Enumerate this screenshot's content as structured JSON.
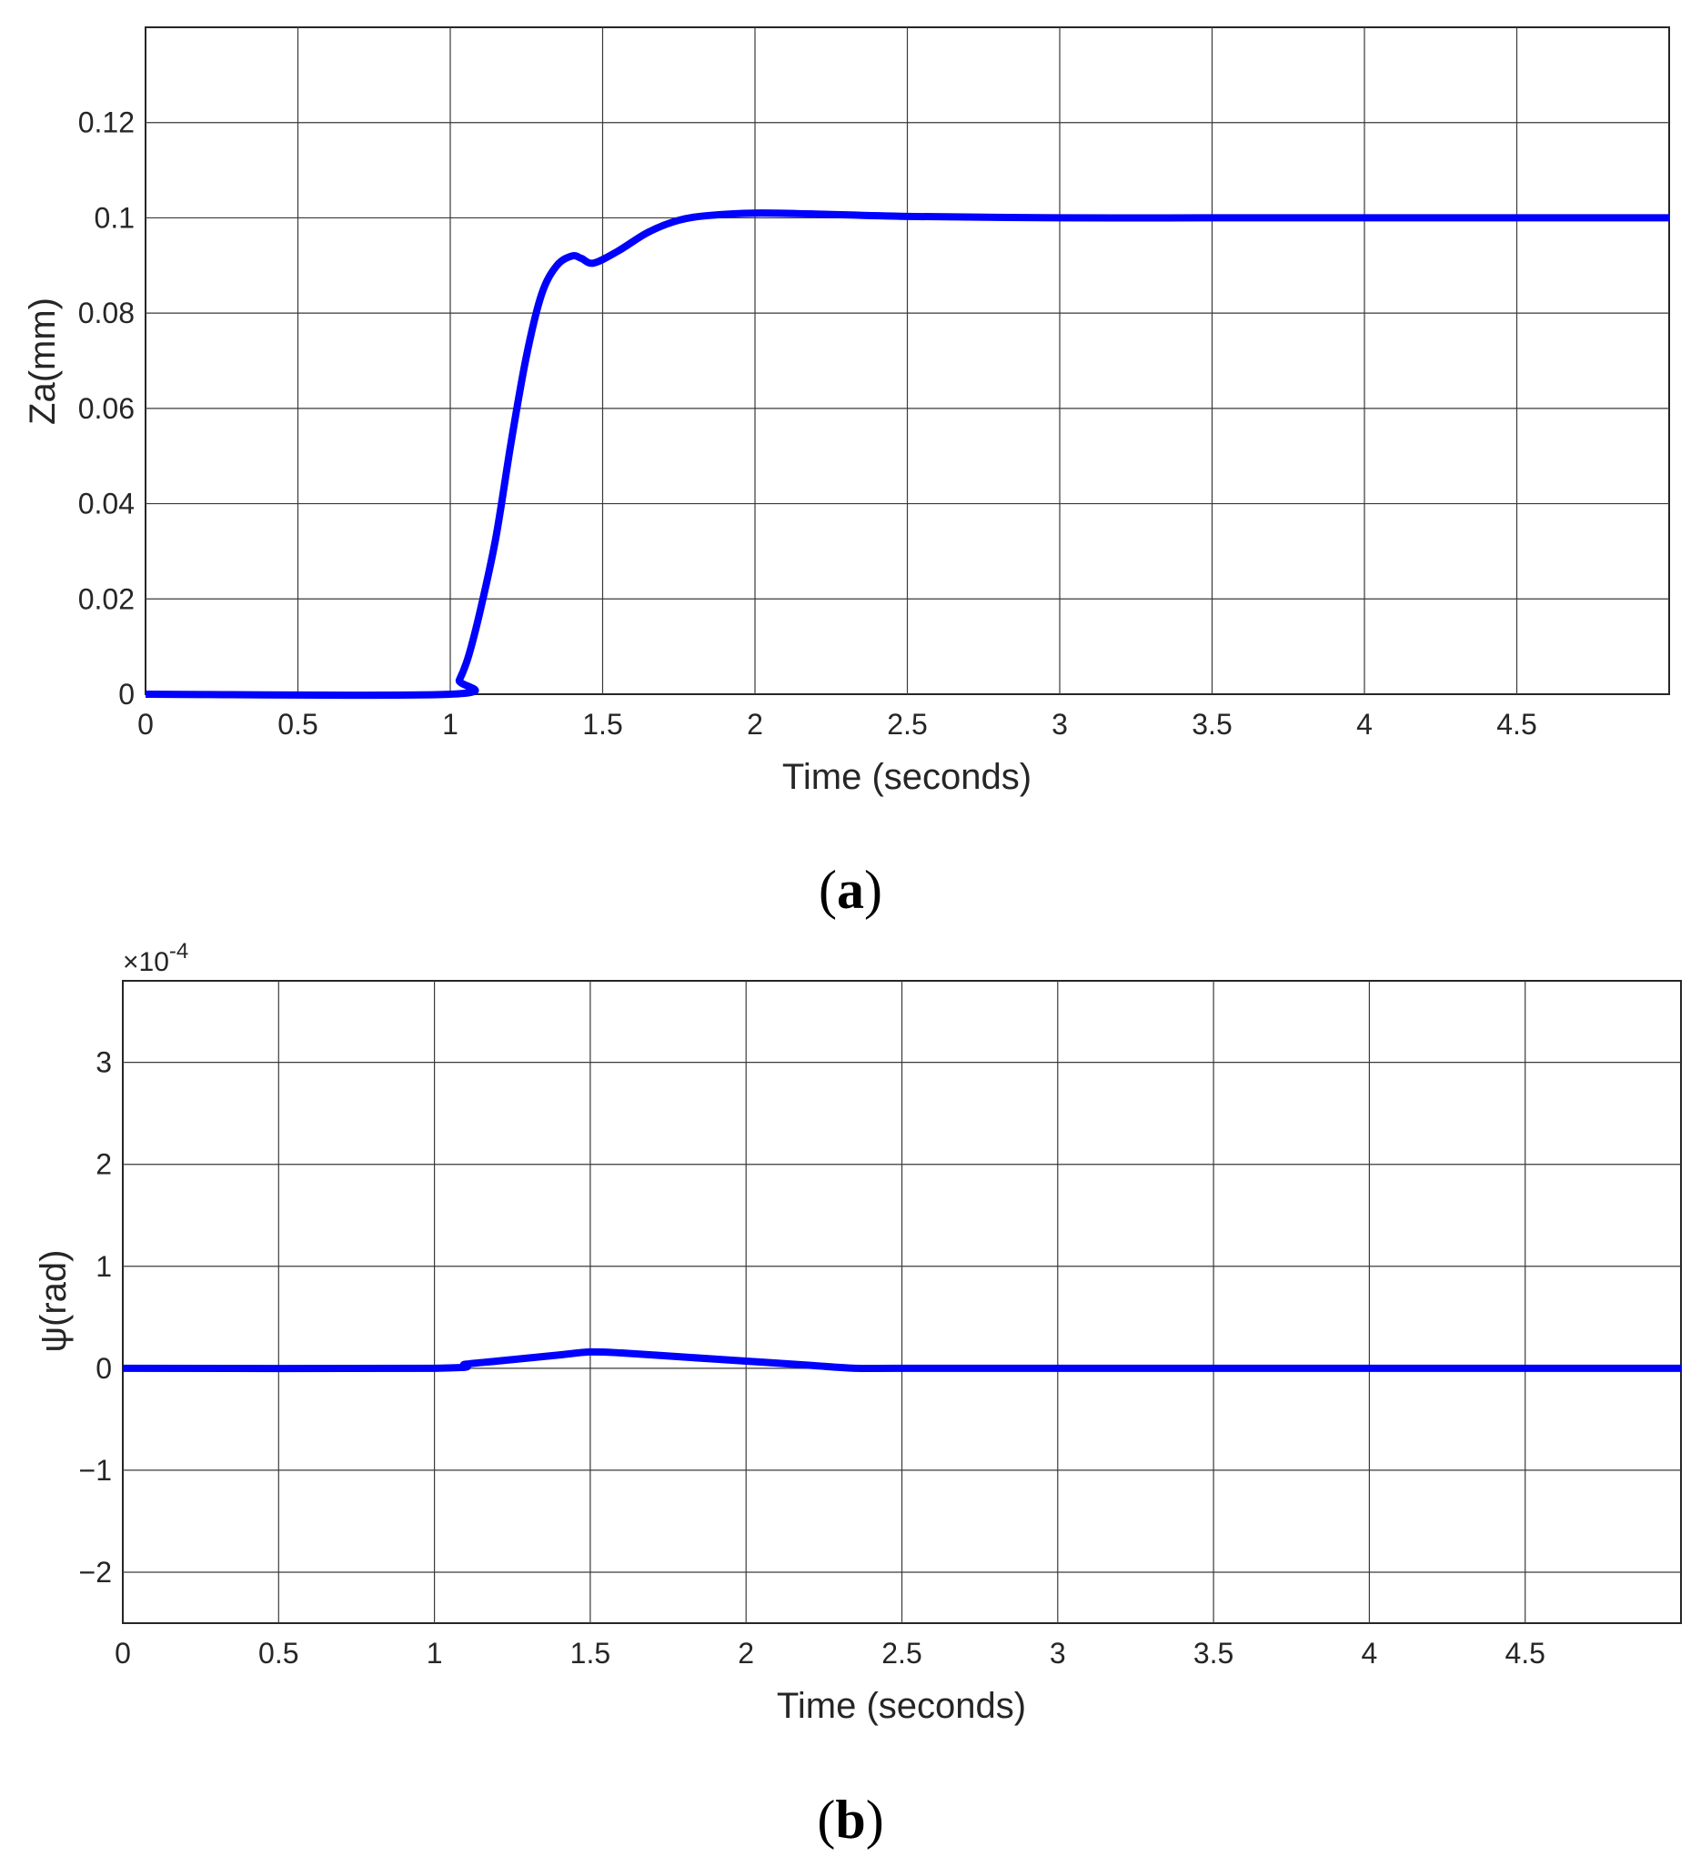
{
  "chart_data": [
    {
      "type": "line",
      "panel": "a",
      "caption": "a",
      "xlabel": "Time (seconds)",
      "ylabel": "Za(mm)",
      "xlim": [
        0,
        5
      ],
      "ylim": [
        0,
        0.14
      ],
      "xticks": [
        0,
        0.5,
        1,
        1.5,
        2,
        2.5,
        3,
        3.5,
        4,
        4.5
      ],
      "xtick_labels": [
        "0",
        "0.5",
        "1",
        "1.5",
        "2",
        "2.5",
        "3",
        "3.5",
        "4",
        "4.5"
      ],
      "yticks": [
        0,
        0.02,
        0.04,
        0.06,
        0.08,
        0.1,
        0.12
      ],
      "ytick_labels": [
        "0",
        "0.02",
        "0.04",
        "0.06",
        "0.08",
        "0.1",
        "0.12"
      ],
      "grid": true,
      "series": [
        {
          "color": "#0000ff",
          "x": [
            0,
            1.0,
            1.03,
            1.06,
            1.1,
            1.15,
            1.2,
            1.25,
            1.3,
            1.35,
            1.4,
            1.43,
            1.47,
            1.55,
            1.65,
            1.75,
            1.85,
            2.0,
            2.2,
            2.5,
            3.0,
            3.5,
            4.0,
            4.5,
            5.0
          ],
          "y": [
            0,
            0,
            0.003,
            0.008,
            0.018,
            0.033,
            0.053,
            0.071,
            0.084,
            0.09,
            0.092,
            0.0915,
            0.0905,
            0.093,
            0.097,
            0.0995,
            0.1005,
            0.101,
            0.1008,
            0.1003,
            0.1,
            0.1,
            0.1,
            0.1,
            0.1
          ]
        }
      ]
    },
    {
      "type": "line",
      "panel": "b",
      "caption": "b",
      "xlabel": "Time (seconds)",
      "ylabel": "ψ(rad)",
      "y_multiplier": "×10",
      "y_multiplier_exp": "-4",
      "xlim": [
        0,
        5
      ],
      "ylim": [
        -2.5,
        3.8
      ],
      "xticks": [
        0,
        0.5,
        1,
        1.5,
        2,
        2.5,
        3,
        3.5,
        4,
        4.5
      ],
      "xtick_labels": [
        "0",
        "0.5",
        "1",
        "1.5",
        "2",
        "2.5",
        "3",
        "3.5",
        "4",
        "4.5"
      ],
      "yticks": [
        -2,
        -1,
        0,
        1,
        2,
        3
      ],
      "ytick_labels": [
        "−2",
        "−1",
        "0",
        "1",
        "2",
        "3"
      ],
      "grid": true,
      "series": [
        {
          "color": "#0000ff",
          "x": [
            0,
            1.0,
            1.1,
            1.2,
            1.3,
            1.4,
            1.5,
            1.6,
            1.8,
            2.0,
            2.2,
            2.35,
            2.5,
            3.0,
            4.0,
            5.0
          ],
          "y": [
            0,
            0,
            0.04,
            0.07,
            0.1,
            0.13,
            0.16,
            0.15,
            0.11,
            0.07,
            0.03,
            0.0,
            0.0,
            0.0,
            0.0,
            0.0
          ]
        }
      ]
    }
  ]
}
